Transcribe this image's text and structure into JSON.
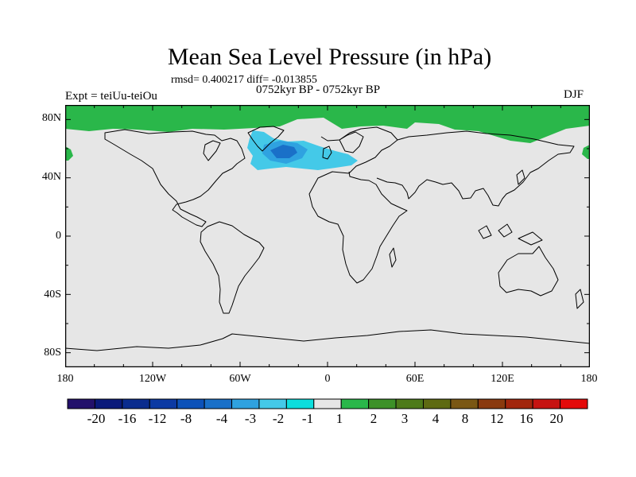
{
  "title": "Mean Sea Level Pressure (in hPa)",
  "stats": "rmsd= 0.400217 diff= -0.013855",
  "period": "0752kyr BP - 0752kyr BP",
  "experiment": "Expt = teiUu-teiOu",
  "season": "DJF",
  "chart_data": {
    "type": "map",
    "projection": "cylindrical-equidistant",
    "lon_range": [
      -180,
      180
    ],
    "lat_range": [
      -90,
      90
    ],
    "y_ticks": [
      "80N",
      "40N",
      "0",
      "40S",
      "80S"
    ],
    "x_ticks": [
      "180",
      "120W",
      "60W",
      "0",
      "60E",
      "120E",
      "180"
    ],
    "field_regions": [
      {
        "name": "north-atlantic-low",
        "level_range": "-2 to -1",
        "color": "#44c9e8"
      },
      {
        "name": "north-atlantic-core",
        "level_range": "-3 to -2",
        "color": "#2fa2e0"
      },
      {
        "name": "north-atlantic-center",
        "level_range": "-4 to -3",
        "color": "#1a70c8"
      },
      {
        "name": "arctic-high",
        "level_range": "1 to 2",
        "color": "#2ab74a"
      }
    ],
    "background_level_range": "-1 to 1",
    "colorbar": {
      "colors": [
        "#23116b",
        "#0a1a7a",
        "#0a2c8e",
        "#0c3aa3",
        "#0d52b9",
        "#1a70c8",
        "#2fa2e0",
        "#44c9e8",
        "#0ddedd",
        "#e6e6e6",
        "#2ab74a",
        "#3d9128",
        "#4d7a1a",
        "#5e6a12",
        "#7a5714",
        "#8a3a0e",
        "#a2260d",
        "#c61311",
        "#e40a0a"
      ],
      "labels": [
        "-20",
        "-16",
        "-12",
        "-8",
        "-4",
        "-3",
        "-2",
        "-1",
        "1",
        "2",
        "3",
        "4",
        "8",
        "12",
        "16",
        "20"
      ]
    }
  }
}
